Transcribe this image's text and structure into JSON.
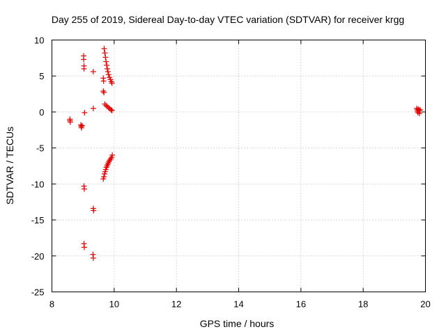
{
  "chart_data": {
    "type": "scatter",
    "title": "Day 255 of 2019, Sidereal Day-to-day VTEC variation (SDTVAR) for receiver krgg",
    "xlabel": "GPS time / hours",
    "ylabel": "SDTVAR / TECUs",
    "xlim": [
      8,
      20
    ],
    "ylim": [
      -25,
      10
    ],
    "xticks": [
      8,
      10,
      12,
      14,
      16,
      18,
      20
    ],
    "yticks": [
      -25,
      -20,
      -15,
      -10,
      -5,
      0,
      5,
      10
    ],
    "xtick_labels": [
      "8",
      "10",
      "12",
      "14",
      "16",
      "18",
      "20"
    ],
    "ytick_labels": [
      "-25",
      "-20",
      "-15",
      "-10",
      "-5",
      "0",
      "5",
      "10"
    ],
    "grid": true,
    "marker": "+",
    "color": "#e00000",
    "series": [
      {
        "name": "SDTVAR",
        "points": [
          [
            8.58,
            -1.0
          ],
          [
            8.58,
            -1.2
          ],
          [
            8.59,
            -1.4
          ],
          [
            8.93,
            -1.8
          ],
          [
            8.94,
            -2.0
          ],
          [
            8.95,
            -2.2
          ],
          [
            8.97,
            -1.9
          ],
          [
            9.02,
            7.8
          ],
          [
            9.02,
            7.3
          ],
          [
            9.03,
            6.4
          ],
          [
            9.03,
            6.0
          ],
          [
            9.05,
            -0.1
          ],
          [
            9.03,
            -10.3
          ],
          [
            9.04,
            -10.7
          ],
          [
            9.03,
            -18.3
          ],
          [
            9.04,
            -18.8
          ],
          [
            9.33,
            5.6
          ],
          [
            9.33,
            0.5
          ],
          [
            9.33,
            -13.4
          ],
          [
            9.34,
            -13.7
          ],
          [
            9.32,
            -19.8
          ],
          [
            9.33,
            -20.3
          ],
          [
            9.65,
            4.7
          ],
          [
            9.66,
            4.3
          ],
          [
            9.65,
            2.9
          ],
          [
            9.67,
            2.7
          ],
          [
            9.68,
            8.8
          ],
          [
            9.7,
            8.2
          ],
          [
            9.72,
            7.6
          ],
          [
            9.74,
            7.0
          ],
          [
            9.76,
            6.5
          ],
          [
            9.78,
            6.0
          ],
          [
            9.8,
            5.6
          ],
          [
            9.82,
            5.2
          ],
          [
            9.85,
            4.8
          ],
          [
            9.88,
            4.5
          ],
          [
            9.91,
            4.2
          ],
          [
            9.93,
            4.0
          ],
          [
            9.7,
            1.1
          ],
          [
            9.74,
            0.9
          ],
          [
            9.78,
            0.75
          ],
          [
            9.82,
            0.6
          ],
          [
            9.86,
            0.45
          ],
          [
            9.9,
            0.3
          ],
          [
            9.93,
            0.2
          ],
          [
            9.65,
            -9.3
          ],
          [
            9.67,
            -9.0
          ],
          [
            9.69,
            -8.6
          ],
          [
            9.71,
            -8.3
          ],
          [
            9.73,
            -8.0
          ],
          [
            9.75,
            -7.7
          ],
          [
            9.77,
            -7.5
          ],
          [
            9.79,
            -7.3
          ],
          [
            9.81,
            -7.1
          ],
          [
            9.83,
            -6.9
          ],
          [
            9.86,
            -6.7
          ],
          [
            9.89,
            -6.5
          ],
          [
            9.92,
            -6.3
          ],
          [
            9.94,
            -6.0
          ],
          [
            19.72,
            0.5
          ],
          [
            19.74,
            0.3
          ],
          [
            19.75,
            0.1
          ],
          [
            19.76,
            -0.1
          ],
          [
            19.78,
            0.4
          ],
          [
            19.8,
            0.2
          ],
          [
            19.81,
            -0.2
          ],
          [
            19.83,
            0.3
          ]
        ]
      }
    ]
  }
}
